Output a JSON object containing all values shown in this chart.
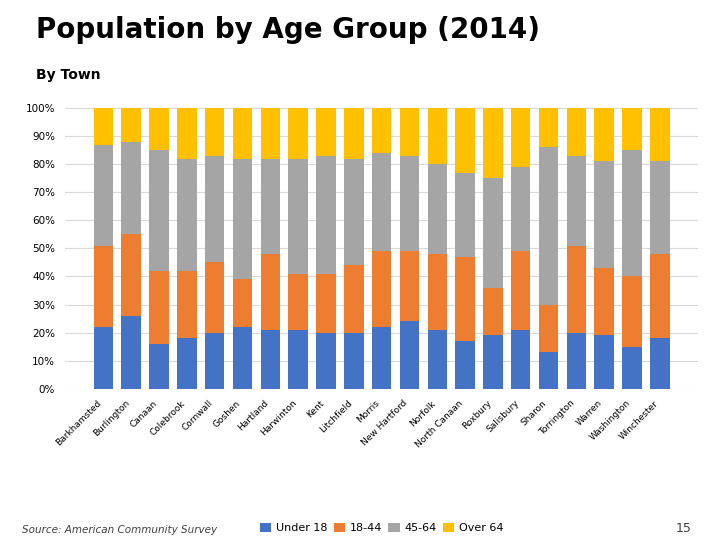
{
  "title": "Population by Age Group (2014)",
  "subtitle": "By Town",
  "source": "Source: American Community Survey",
  "page_number": "15",
  "towns": [
    "Barkhamsted",
    "Burlington",
    "Canaan",
    "Colebrook",
    "Cornwall",
    "Goshen",
    "Hartland",
    "Harwinton",
    "Kent",
    "Litchfield",
    "Morris",
    "New Hartford",
    "Norfolk",
    "North Canaan",
    "Roxbury",
    "Salisbury",
    "Sharon",
    "Torrington",
    "Warren",
    "Washington",
    "Winchester"
  ],
  "under18": [
    0.22,
    0.26,
    0.16,
    0.18,
    0.2,
    0.22,
    0.21,
    0.21,
    0.2,
    0.2,
    0.22,
    0.24,
    0.21,
    0.17,
    0.19,
    0.21,
    0.13,
    0.2,
    0.19,
    0.15,
    0.18
  ],
  "age1844": [
    0.29,
    0.29,
    0.26,
    0.24,
    0.25,
    0.17,
    0.27,
    0.2,
    0.21,
    0.24,
    0.27,
    0.25,
    0.27,
    0.3,
    0.17,
    0.28,
    0.17,
    0.31,
    0.24,
    0.25,
    0.3
  ],
  "age4564": [
    0.36,
    0.33,
    0.43,
    0.4,
    0.38,
    0.43,
    0.34,
    0.41,
    0.42,
    0.38,
    0.35,
    0.34,
    0.32,
    0.3,
    0.39,
    0.3,
    0.56,
    0.32,
    0.38,
    0.45,
    0.33
  ],
  "over64": [
    0.13,
    0.12,
    0.15,
    0.18,
    0.17,
    0.18,
    0.18,
    0.18,
    0.17,
    0.18,
    0.16,
    0.17,
    0.2,
    0.23,
    0.25,
    0.21,
    0.14,
    0.17,
    0.19,
    0.15,
    0.19
  ],
  "color_under18": "#4472C4",
  "color_1844": "#ED7D31",
  "color_4564": "#A5A5A5",
  "color_over64": "#FFC000",
  "ylim": [
    0,
    1.0
  ],
  "yticks": [
    0,
    0.1,
    0.2,
    0.3,
    0.4,
    0.5,
    0.6,
    0.7,
    0.8,
    0.9,
    1.0
  ],
  "ytick_labels": [
    "0%",
    "10%",
    "20%",
    "30%",
    "40%",
    "50%",
    "60%",
    "70%",
    "80%",
    "90%",
    "100%"
  ],
  "legend_labels": [
    "Under 18",
    "18-44",
    "45-64",
    "Over 64"
  ],
  "title_fontsize": 20,
  "subtitle_fontsize": 10,
  "background_color": "#FFFFFF"
}
